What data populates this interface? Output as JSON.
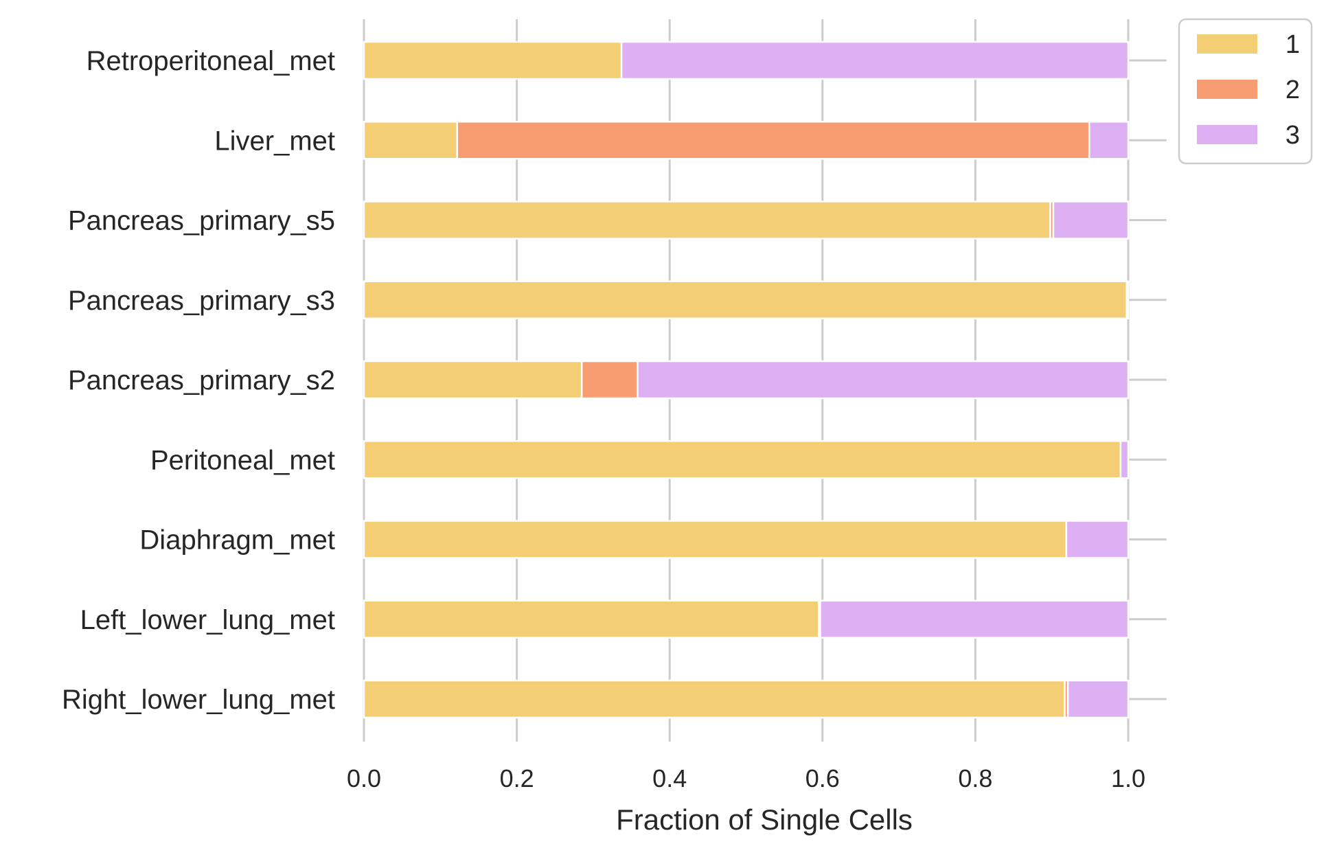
{
  "chart_data": {
    "type": "bar",
    "orientation": "horizontal",
    "stacked": true,
    "categories": [
      "Retroperitoneal_met",
      "Liver_met",
      "Pancreas_primary_s5",
      "Pancreas_primary_s3",
      "Pancreas_primary_s2",
      "Peritoneal_met",
      "Diaphragm_met",
      "Left_lower_lung_met",
      "Right_lower_lung_met"
    ],
    "series": [
      {
        "name": "1",
        "color": "#F4CE74",
        "values": [
          0.337,
          0.122,
          0.898,
          0.998,
          0.285,
          0.99,
          0.919,
          0.595,
          0.917
        ]
      },
      {
        "name": "2",
        "color": "#F89D72",
        "values": [
          0.0,
          0.827,
          0.004,
          0.0,
          0.073,
          0.0,
          0.0,
          0.002,
          0.004
        ]
      },
      {
        "name": "3",
        "color": "#DCB0F2",
        "values": [
          0.663,
          0.051,
          0.098,
          0.002,
          0.642,
          0.01,
          0.081,
          0.403,
          0.079
        ]
      }
    ],
    "xlabel": "Fraction of Single Cells",
    "ylabel": "",
    "xlim": [
      0,
      1.05
    ],
    "xticks": [
      0.0,
      0.2,
      0.4,
      0.6,
      0.8,
      1.0
    ],
    "xtick_labels": [
      "0.0",
      "0.2",
      "0.4",
      "0.6",
      "0.8",
      "1.0"
    ],
    "grid": true,
    "grid_color": "#CCCCCC",
    "legend": {
      "placement": "outside-top-right",
      "entries": [
        "1",
        "2",
        "3"
      ]
    }
  }
}
